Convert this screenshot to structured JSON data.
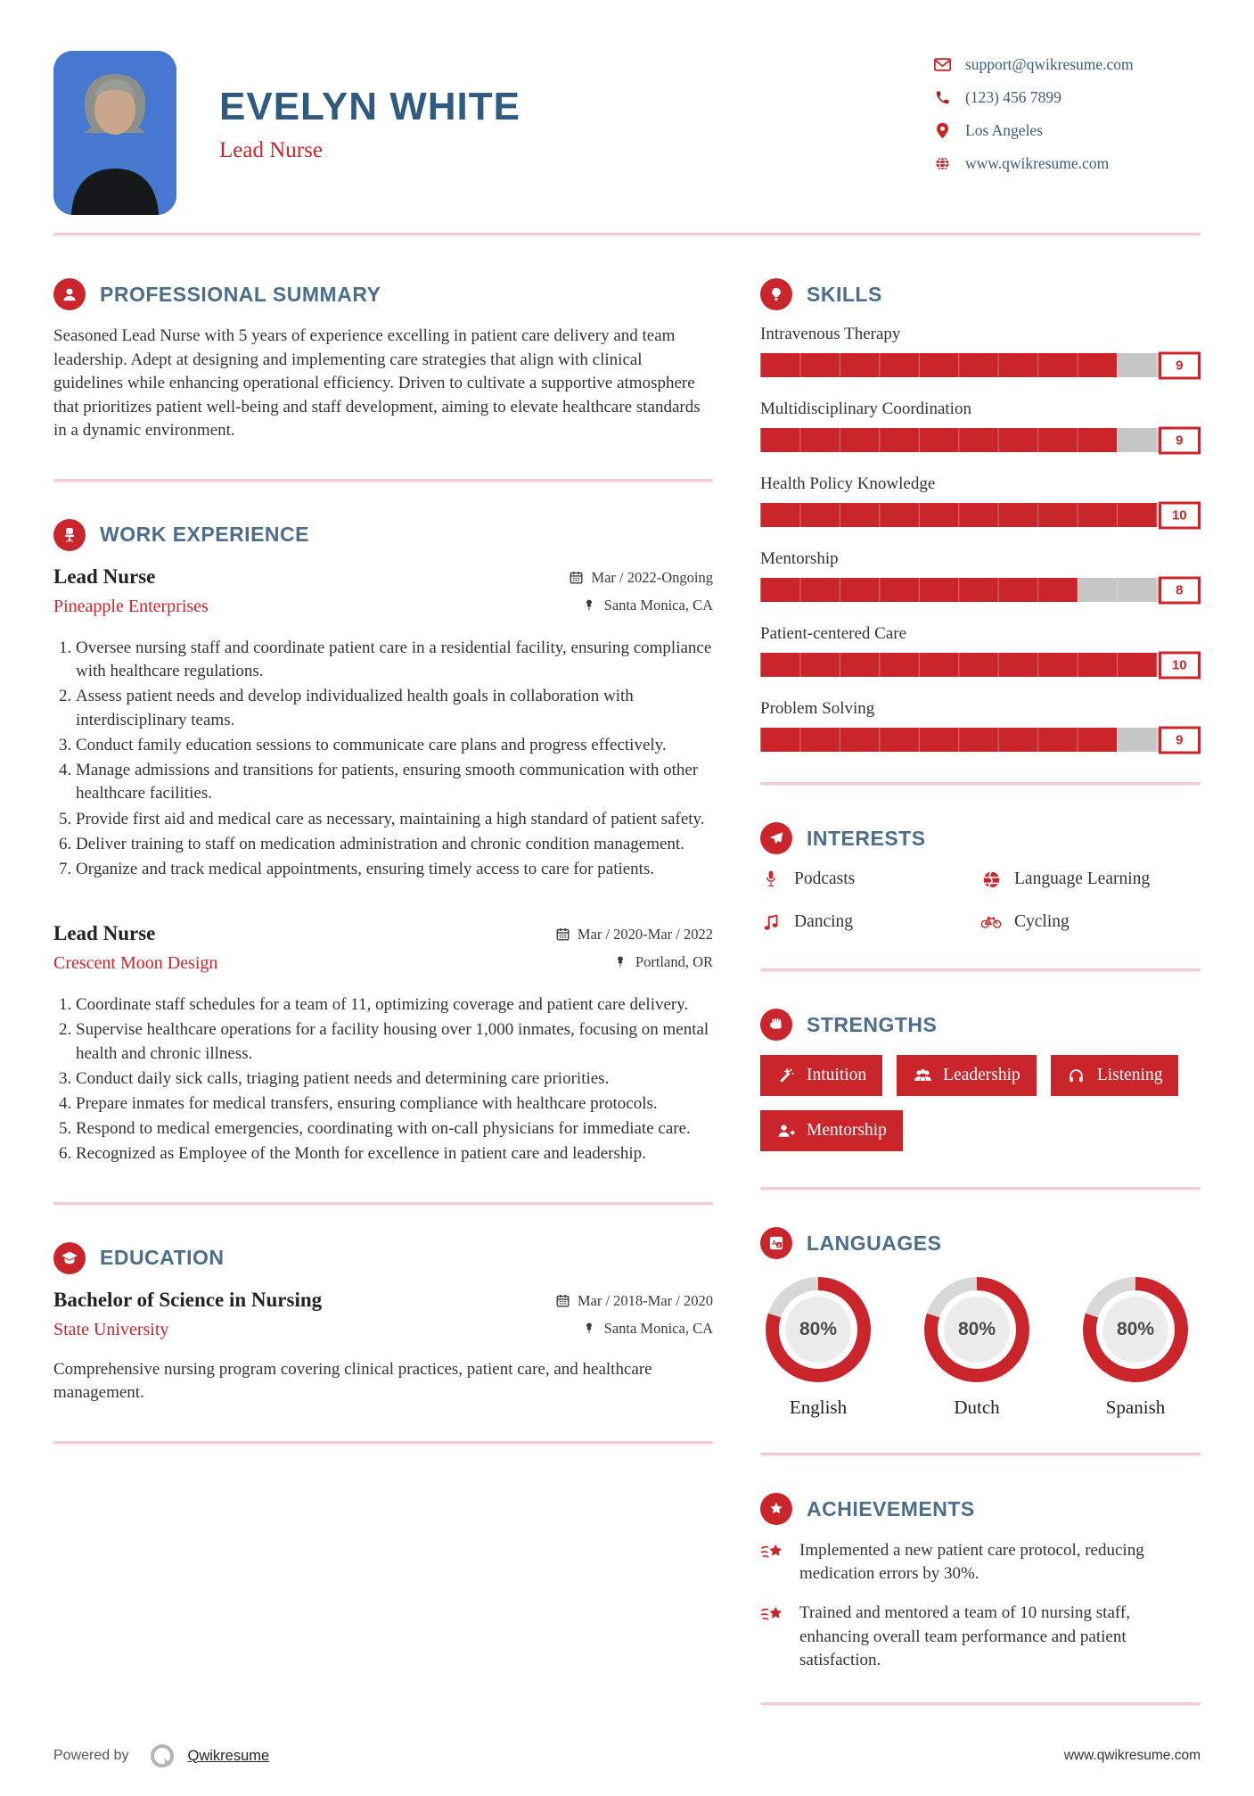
{
  "theme": {
    "accent_red": "#c9252b",
    "heading_blue": "#4d6d8c",
    "name_blue": "#2f5b80",
    "photo_bg_blue": "#4678d0",
    "divider_pink": "#f0ccd3",
    "bar_track_gray": "#c6c6c6"
  },
  "header": {
    "name": "EVELYN WHITE",
    "title": "Lead Nurse",
    "contact": {
      "email": "support@qwikresume.com",
      "phone": "(123) 456 7899",
      "location": "Los Angeles",
      "website": "www.qwikresume.com"
    }
  },
  "summary": {
    "heading": "PROFESSIONAL SUMMARY",
    "text": "Seasoned Lead Nurse with 5 years of experience excelling in patient care delivery and team leadership. Adept at designing and implementing care strategies that align with clinical guidelines while enhancing operational efficiency. Driven to cultivate a supportive atmosphere that prioritizes patient well-being and staff development, aiming to elevate healthcare standards in a dynamic environment."
  },
  "experience": {
    "heading": "WORK EXPERIENCE",
    "jobs": [
      {
        "title": "Lead Nurse",
        "company": "Pineapple Enterprises",
        "dates": "Mar / 2022-Ongoing",
        "location": "Santa Monica, CA",
        "bullets": [
          "Oversee nursing staff and coordinate patient care in a residential facility, ensuring compliance with healthcare regulations.",
          "Assess patient needs and develop individualized health goals in collaboration with interdisciplinary teams.",
          "Conduct family education sessions to communicate care plans and progress effectively.",
          "Manage admissions and transitions for patients, ensuring smooth communication with other healthcare facilities.",
          "Provide first aid and medical care as necessary, maintaining a high standard of patient safety.",
          "Deliver training to staff on medication administration and chronic condition management.",
          "Organize and track medical appointments, ensuring timely access to care for patients."
        ]
      },
      {
        "title": "Lead Nurse",
        "company": "Crescent Moon Design",
        "dates": "Mar / 2020-Mar / 2022",
        "location": "Portland, OR",
        "bullets": [
          "Coordinate staff schedules for a team of 11, optimizing coverage and patient care delivery.",
          "Supervise healthcare operations for a facility housing over 1,000 inmates, focusing on mental health and chronic illness.",
          "Conduct daily sick calls, triaging patient needs and determining care priorities.",
          "Prepare inmates for medical transfers, ensuring compliance with healthcare protocols.",
          "Respond to medical emergencies, coordinating with on-call physicians for immediate care.",
          "Recognized as Employee of the Month for excellence in patient care and leadership."
        ]
      }
    ]
  },
  "education": {
    "heading": "EDUCATION",
    "degree": "Bachelor of Science in Nursing",
    "school": "State University",
    "dates": "Mar / 2018-Mar / 2020",
    "location": "Santa Monica, CA",
    "description": "Comprehensive nursing program covering clinical practices, patient care, and healthcare management."
  },
  "skills": {
    "heading": "SKILLS",
    "max": 10,
    "items": [
      {
        "label": "Intravenous Therapy",
        "value": 9
      },
      {
        "label": "Multidisciplinary Coordination",
        "value": 9
      },
      {
        "label": "Health Policy Knowledge",
        "value": 10
      },
      {
        "label": "Mentorship",
        "value": 8
      },
      {
        "label": "Patient-centered Care",
        "value": 10
      },
      {
        "label": "Problem Solving",
        "value": 9
      }
    ]
  },
  "interests": {
    "heading": "INTERESTS",
    "items": [
      {
        "label": "Podcasts",
        "icon": "microphone-icon"
      },
      {
        "label": "Language Learning",
        "icon": "globe-icon"
      },
      {
        "label": "Dancing",
        "icon": "music-note-icon"
      },
      {
        "label": "Cycling",
        "icon": "bicycle-icon"
      }
    ]
  },
  "strengths": {
    "heading": "STRENGTHS",
    "items": [
      {
        "label": "Intuition",
        "icon": "magic-wand-icon"
      },
      {
        "label": "Leadership",
        "icon": "users-icon"
      },
      {
        "label": "Listening",
        "icon": "headphones-icon"
      },
      {
        "label": "Mentorship",
        "icon": "person-plus-icon"
      }
    ]
  },
  "languages": {
    "heading": "LANGUAGES",
    "items": [
      {
        "label": "English",
        "percent": 80,
        "percent_label": "80%"
      },
      {
        "label": "Dutch",
        "percent": 80,
        "percent_label": "80%"
      },
      {
        "label": "Spanish",
        "percent": 80,
        "percent_label": "80%"
      }
    ]
  },
  "achievements": {
    "heading": "ACHIEVEMENTS",
    "items": [
      "Implemented a new patient care protocol, reducing medication errors by 30%.",
      "Trained and mentored a team of 10 nursing staff, enhancing overall team performance and patient satisfaction."
    ]
  },
  "footer": {
    "powered_by": "Powered by",
    "brand": "Qwikresume",
    "site": "www.qwikresume.com"
  }
}
